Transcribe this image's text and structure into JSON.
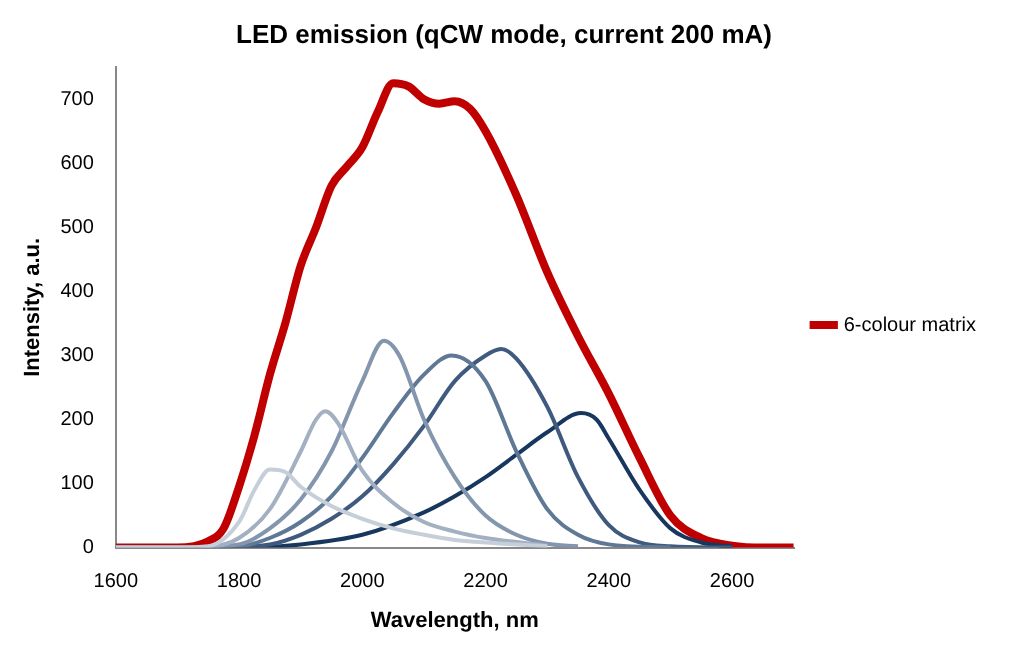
{
  "chart_data": {
    "type": "line",
    "title": "LED emission (qCW mode, current 200 mA)",
    "xlabel": "Wavelength, nm",
    "ylabel": "Intensity, a.u.",
    "xlim": [
      1600,
      2700
    ],
    "xticks": [
      1600,
      1800,
      2000,
      2200,
      2400,
      2600
    ],
    "ylim": [
      0,
      750
    ],
    "yticks": [
      0,
      100,
      200,
      300,
      400,
      500,
      600,
      700
    ],
    "grid": false,
    "legend": "right",
    "marker": "none",
    "line_style": "solid",
    "series": [
      {
        "color": "#c5ced9",
        "x": [
          1600,
          1700,
          1750,
          1800,
          1825,
          1850,
          1875,
          1900,
          1950,
          2000,
          2050,
          2100,
          2150,
          2200,
          2300
        ],
        "values": [
          0,
          0,
          2,
          40,
          90,
          122,
          118,
          95,
          65,
          45,
          30,
          20,
          12,
          8,
          2
        ]
      },
      {
        "color": "#a3b0c2",
        "x": [
          1600,
          1700,
          1750,
          1800,
          1850,
          1900,
          1925,
          1940,
          1960,
          2000,
          2050,
          2100,
          2150,
          2200,
          2300
        ],
        "values": [
          0,
          0,
          1,
          15,
          60,
          150,
          200,
          213,
          195,
          120,
          70,
          40,
          25,
          15,
          3
        ]
      },
      {
        "color": "#8496ae",
        "x": [
          1600,
          1700,
          1800,
          1850,
          1900,
          1950,
          2000,
          2035,
          2060,
          2100,
          2150,
          2200,
          2250,
          2300,
          2350
        ],
        "values": [
          0,
          0,
          5,
          30,
          75,
          150,
          260,
          323,
          300,
          200,
          110,
          50,
          20,
          6,
          2
        ]
      },
      {
        "color": "#5f7896",
        "x": [
          1600,
          1700,
          1800,
          1850,
          1900,
          1950,
          2000,
          2050,
          2100,
          2145,
          2200,
          2250,
          2300,
          2350,
          2400,
          2500
        ],
        "values": [
          0,
          0,
          2,
          15,
          40,
          80,
          140,
          210,
          270,
          300,
          260,
          150,
          60,
          20,
          5,
          0
        ]
      },
      {
        "color": "#3f5a7e",
        "x": [
          1600,
          1750,
          1850,
          1900,
          1950,
          2000,
          2050,
          2100,
          2150,
          2200,
          2225,
          2250,
          2300,
          2350,
          2400,
          2450,
          2500,
          2600
        ],
        "values": [
          0,
          0,
          5,
          20,
          45,
          80,
          130,
          190,
          260,
          300,
          310,
          295,
          220,
          110,
          35,
          8,
          2,
          0
        ]
      },
      {
        "color": "#17375e",
        "x": [
          1600,
          1800,
          1900,
          2000,
          2100,
          2150,
          2200,
          2250,
          2300,
          2355,
          2380,
          2400,
          2450,
          2500,
          2550,
          2600
        ],
        "values": [
          0,
          0,
          5,
          20,
          55,
          80,
          110,
          145,
          180,
          210,
          200,
          170,
          90,
          30,
          8,
          2
        ]
      },
      {
        "name": "6-colour matrix",
        "color": "#c00000",
        "x": [
          1600,
          1700,
          1750,
          1775,
          1800,
          1825,
          1850,
          1875,
          1900,
          1925,
          1950,
          1975,
          2000,
          2025,
          2050,
          2075,
          2100,
          2125,
          2150,
          2175,
          2200,
          2250,
          2300,
          2350,
          2400,
          2450,
          2500,
          2550,
          2600,
          2650,
          2700
        ],
        "values": [
          0,
          0,
          10,
          30,
          95,
          175,
          270,
          350,
          440,
          500,
          565,
          595,
          625,
          680,
          725,
          720,
          700,
          693,
          697,
          685,
          650,
          550,
          430,
          330,
          240,
          140,
          50,
          15,
          3,
          0,
          0
        ]
      }
    ]
  }
}
